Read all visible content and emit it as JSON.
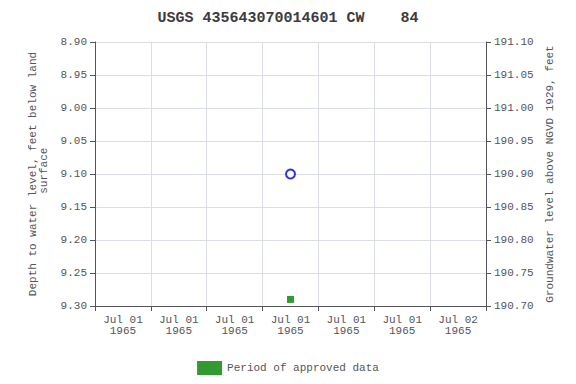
{
  "chart_data": {
    "type": "scatter",
    "title": "USGS 435643070014601 CW    84",
    "y_label": "Depth to water level, feet below land\n surface",
    "y2_label": "Groundwater level above NGVD 1929, feet",
    "categories": [
      "Jul 01\n1965",
      "Jul 01\n1965",
      "Jul 01\n1965",
      "Jul 01\n1965",
      "Jul 01\n1965",
      "Jul 01\n1965",
      "Jul 02\n1965"
    ],
    "series": [
      {
        "color": "#0000cc",
        "marker": "open circle",
        "values": [
          null,
          null,
          null,
          9.1,
          null,
          null,
          null
        ]
      },
      {
        "name": "Period of approved data",
        "color": "#008000",
        "marker": "square",
        "values": [
          null,
          null,
          null,
          9.29,
          null,
          null,
          null
        ]
      }
    ],
    "ylim": [
      9.3,
      8.9
    ],
    "yticks": [
      {
        "value": 8.9,
        "label": "8.90"
      },
      8.95,
      {
        "value": 9.0,
        "label": "9.00"
      },
      9.05,
      {
        "value": 9.1,
        "label": "9.10"
      },
      9.15,
      {
        "value": 9.2,
        "label": "9.20"
      },
      9.25,
      {
        "value": 9.3,
        "label": "9.30"
      }
    ],
    "y2lim": [
      190.7,
      191.1
    ],
    "y2ticks": [
      {
        "value": 190.7,
        "label": "190.70"
      },
      190.75,
      {
        "value": 190.8,
        "label": "190.80"
      },
      190.85,
      {
        "value": 190.9,
        "label": "190.90"
      },
      190.95,
      {
        "value": 191.0,
        "label": "191.00"
      },
      191.05,
      {
        "value": 191.1,
        "label": "191.10"
      }
    ],
    "grid": true,
    "legend": "bottom"
  }
}
